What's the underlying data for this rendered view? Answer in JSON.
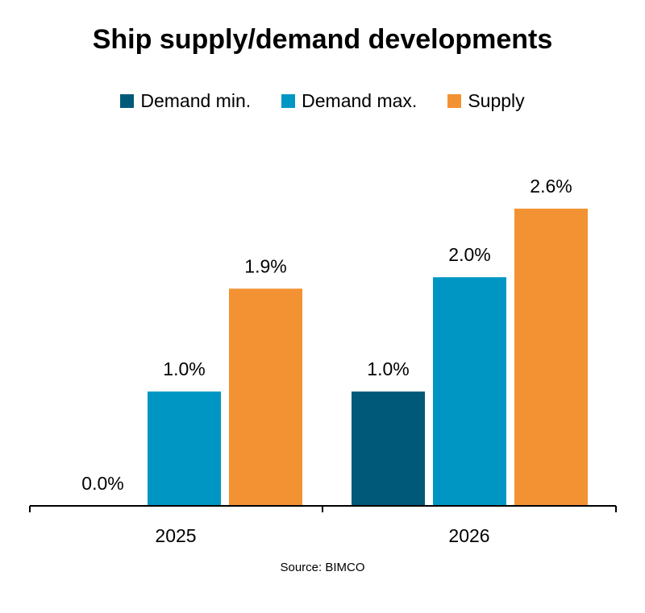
{
  "chart_data": {
    "type": "bar",
    "title": "Ship supply/demand developments",
    "categories": [
      "2025",
      "2026"
    ],
    "series": [
      {
        "name": "Demand min.",
        "values": [
          0.0,
          1.0
        ],
        "labels": [
          "0.0%",
          "1.0%"
        ],
        "color": "#005978"
      },
      {
        "name": "Demand max.",
        "values": [
          1.0,
          2.0
        ],
        "labels": [
          "1.0%",
          "2.0%"
        ],
        "color": "#0096c4"
      },
      {
        "name": "Supply",
        "values": [
          1.9,
          2.6
        ],
        "labels": [
          "1.9%",
          "2.6%"
        ],
        "color": "#f39232"
      }
    ],
    "ylim": [
      0,
      2.6
    ],
    "xlabel": "",
    "ylabel": "",
    "grid": false,
    "legend_position": "top",
    "source": "Source: BIMCO"
  }
}
